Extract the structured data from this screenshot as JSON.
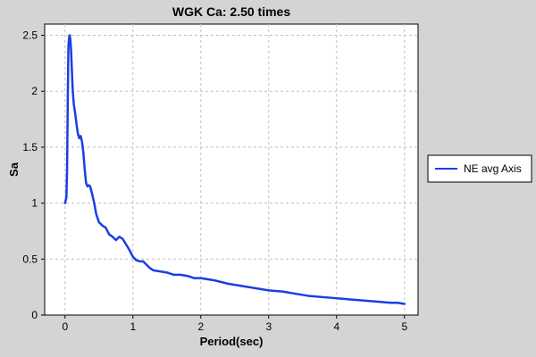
{
  "chart_data": {
    "type": "line",
    "title": "WGK Ca: 2.50 times",
    "xlabel": "Period(sec)",
    "ylabel": "Sa",
    "xlim": [
      -0.3,
      5.2
    ],
    "ylim": [
      0,
      2.6
    ],
    "xticks": [
      0,
      1,
      2,
      3,
      4,
      5
    ],
    "yticks": [
      0,
      0.5,
      1,
      1.5,
      2,
      2.5
    ],
    "xtick_labels": [
      "0",
      "1",
      "2",
      "3",
      "4",
      "5"
    ],
    "ytick_labels": [
      "0",
      "0.5",
      "1",
      "1.5",
      "2",
      "2.5"
    ],
    "grid": true,
    "legend_position": "right",
    "colors": {
      "background": "#d4d4d4",
      "plot_background": "#ffffff",
      "grid": "#c0c0c0",
      "series": "#1a3ee6"
    },
    "series": [
      {
        "name": "NE avg Axis",
        "x": [
          0.0,
          0.02,
          0.03,
          0.04,
          0.05,
          0.06,
          0.07,
          0.08,
          0.09,
          0.1,
          0.11,
          0.12,
          0.13,
          0.15,
          0.17,
          0.19,
          0.21,
          0.23,
          0.25,
          0.27,
          0.29,
          0.31,
          0.33,
          0.35,
          0.37,
          0.4,
          0.43,
          0.46,
          0.5,
          0.55,
          0.6,
          0.65,
          0.7,
          0.75,
          0.8,
          0.85,
          0.9,
          0.95,
          1.0,
          1.05,
          1.1,
          1.15,
          1.2,
          1.25,
          1.3,
          1.4,
          1.5,
          1.6,
          1.7,
          1.8,
          1.9,
          2.0,
          2.2,
          2.4,
          2.6,
          2.8,
          3.0,
          3.2,
          3.4,
          3.6,
          3.8,
          4.0,
          4.2,
          4.4,
          4.6,
          4.8,
          4.9,
          5.0
        ],
        "values": [
          1.0,
          1.05,
          1.3,
          1.9,
          2.4,
          2.48,
          2.5,
          2.45,
          2.35,
          2.2,
          2.05,
          1.95,
          1.88,
          1.8,
          1.7,
          1.62,
          1.58,
          1.6,
          1.55,
          1.45,
          1.3,
          1.18,
          1.15,
          1.16,
          1.15,
          1.08,
          1.0,
          0.9,
          0.83,
          0.8,
          0.78,
          0.72,
          0.7,
          0.67,
          0.7,
          0.68,
          0.63,
          0.58,
          0.52,
          0.49,
          0.48,
          0.48,
          0.45,
          0.42,
          0.4,
          0.39,
          0.38,
          0.36,
          0.36,
          0.35,
          0.33,
          0.33,
          0.31,
          0.28,
          0.26,
          0.24,
          0.22,
          0.21,
          0.19,
          0.17,
          0.16,
          0.15,
          0.14,
          0.13,
          0.12,
          0.11,
          0.11,
          0.1
        ]
      }
    ]
  }
}
